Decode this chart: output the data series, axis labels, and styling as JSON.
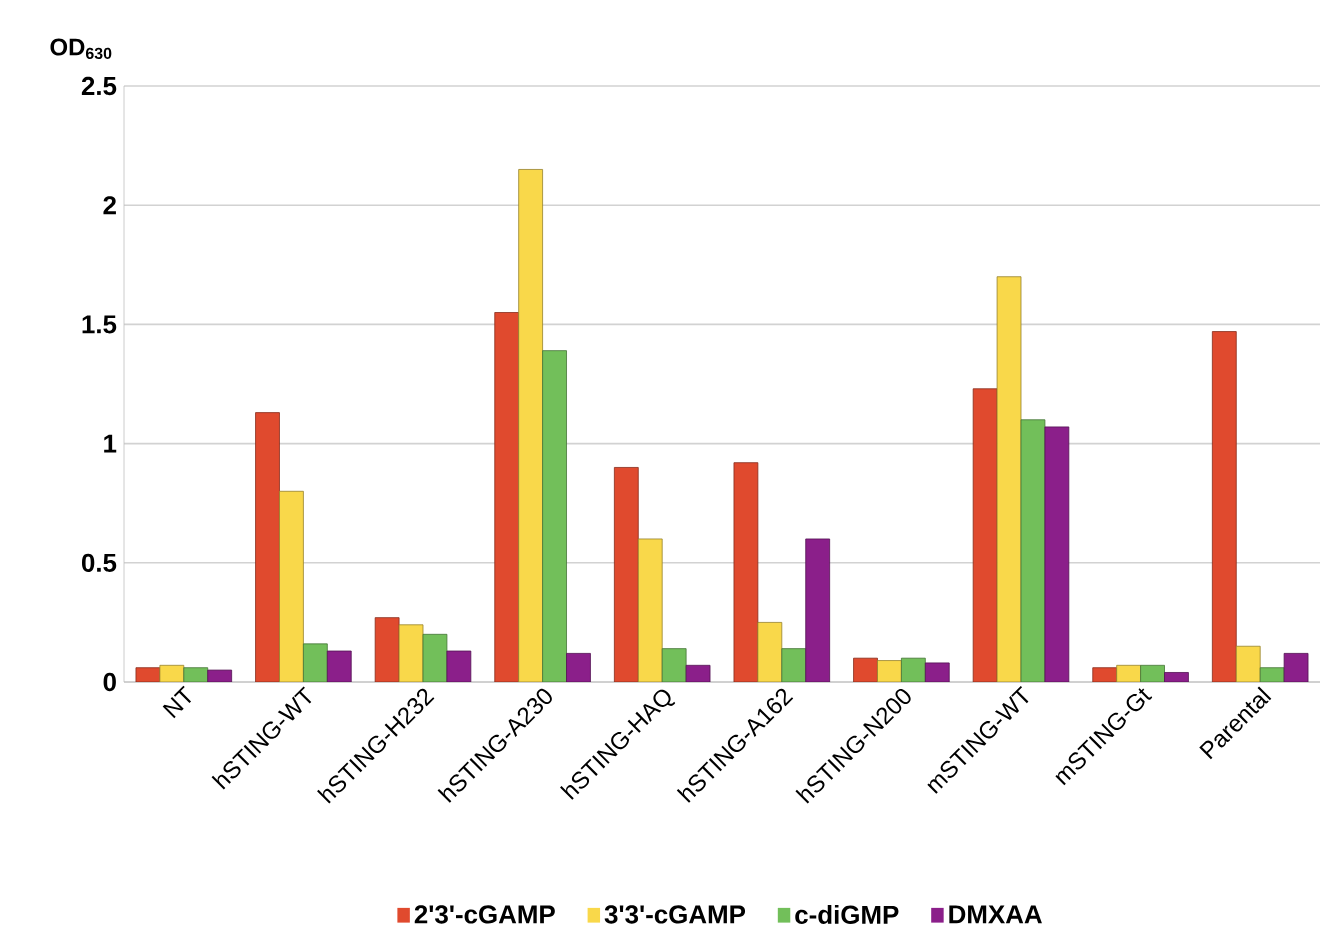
{
  "chart_data": {
    "type": "bar",
    "ylabel": "OD$_{630}$",
    "categories": [
      "NT",
      "hSTING-WT",
      "hSTING-H232",
      "hSTING-A230",
      "hSTING-HAQ",
      "hSTING-A162",
      "hSTING-N200",
      "mSTING-WT",
      "mSTING-Gt",
      "Parental"
    ],
    "series": [
      {
        "name": "2'3'-cGAMP",
        "color": "#e04a2e",
        "values": [
          0.06,
          1.13,
          0.27,
          1.55,
          0.9,
          0.92,
          0.1,
          1.23,
          0.06,
          1.47
        ]
      },
      {
        "name": "3'3'-cGAMP",
        "color": "#f9d84a",
        "values": [
          0.07,
          0.8,
          0.24,
          2.15,
          0.6,
          0.25,
          0.09,
          1.7,
          0.07,
          0.15
        ]
      },
      {
        "name": "c-diGMP",
        "color": "#72bf5a",
        "values": [
          0.06,
          0.16,
          0.2,
          1.39,
          0.14,
          0.14,
          0.1,
          1.1,
          0.07,
          0.06
        ]
      },
      {
        "name": "DMXAA",
        "color": "#8b1f8a",
        "values": [
          0.05,
          0.13,
          0.13,
          0.12,
          0.07,
          0.6,
          0.08,
          1.07,
          0.04,
          0.12
        ]
      }
    ],
    "ylim": [
      0,
      2.5
    ],
    "yticks": [
      0,
      0.5,
      1,
      1.5,
      2,
      2.5
    ],
    "grid": "y",
    "legend": "bottom"
  }
}
